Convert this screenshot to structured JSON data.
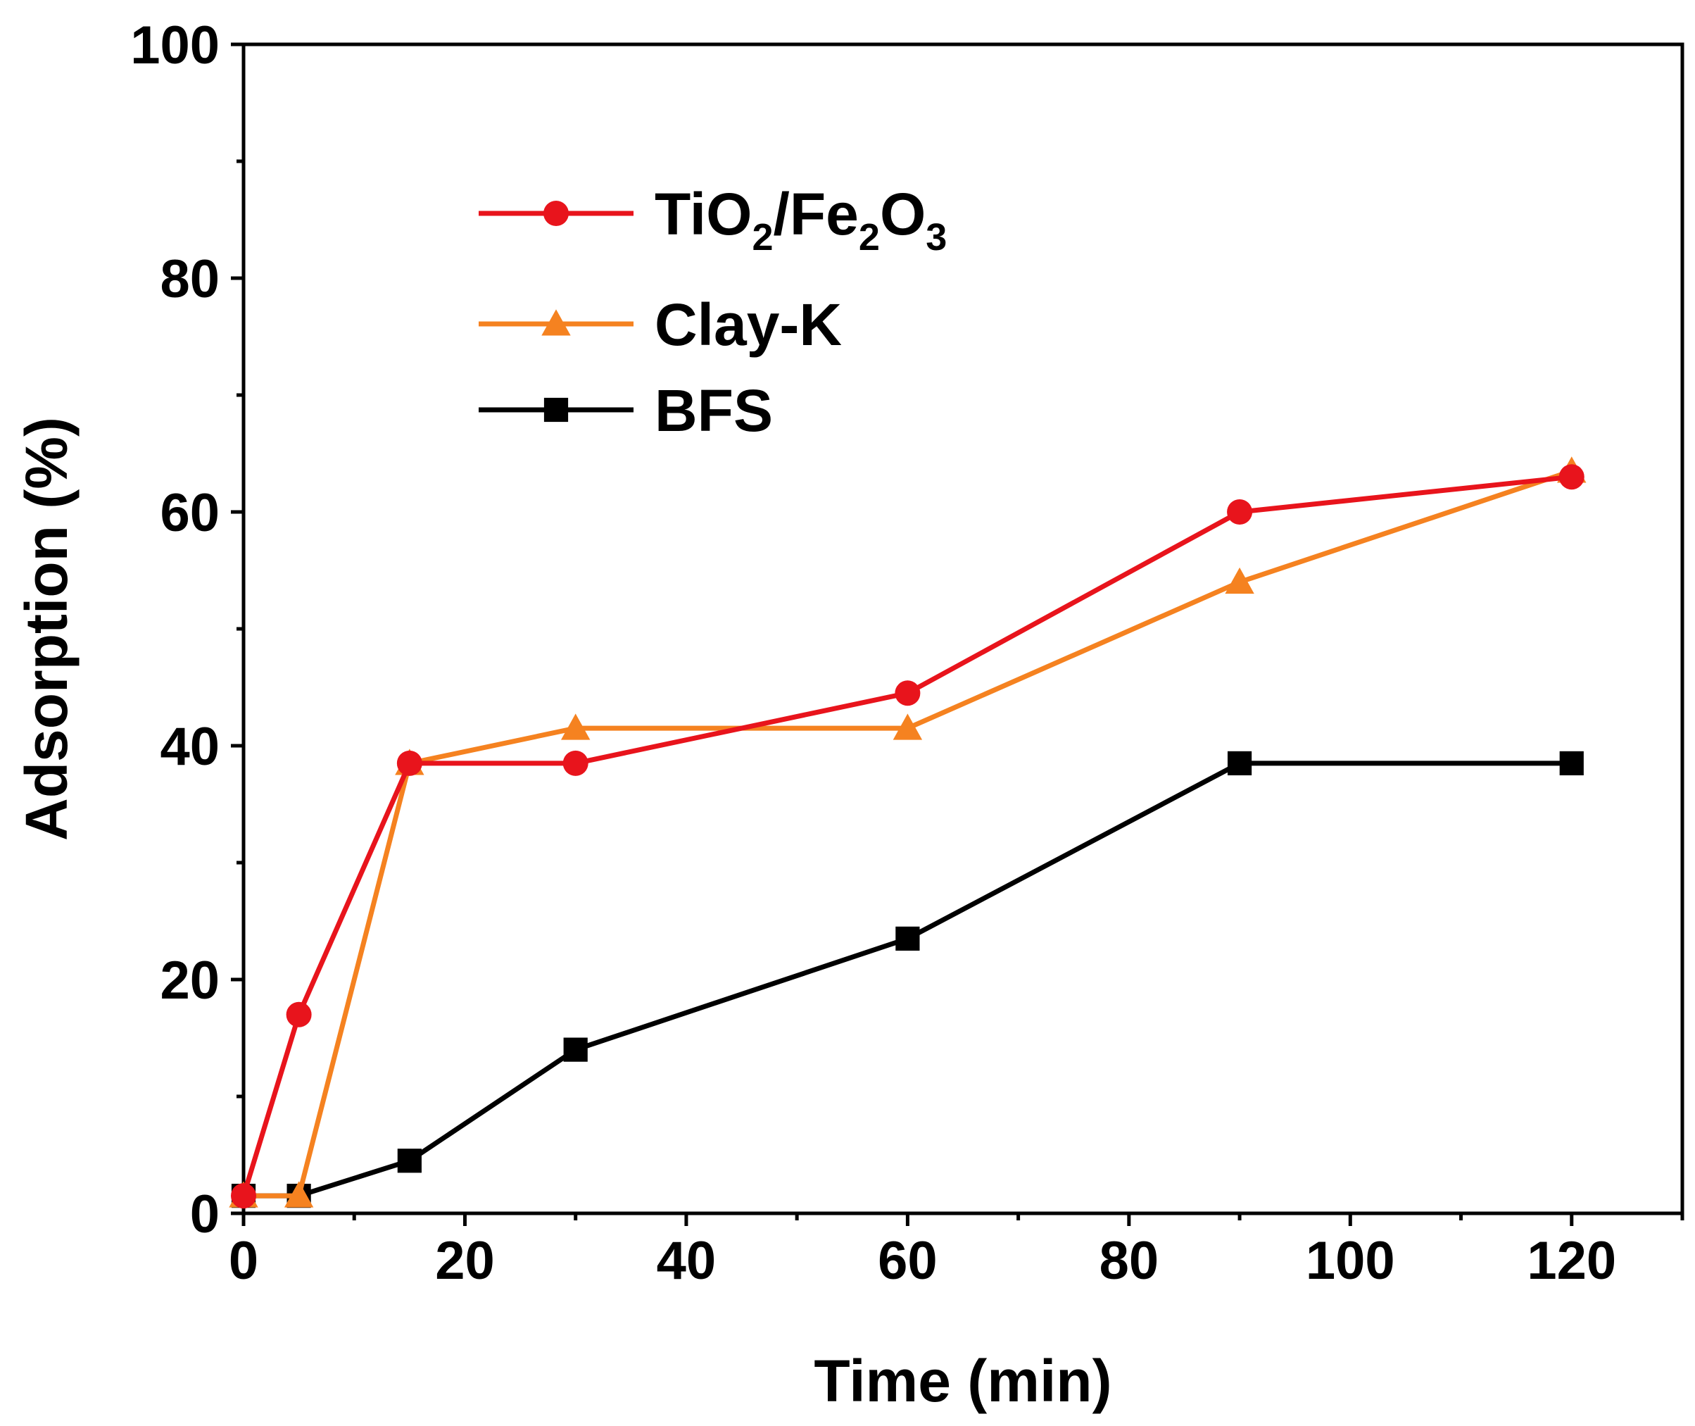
{
  "chart_data": {
    "type": "line",
    "title": "",
    "xlabel": "Time (min)",
    "ylabel": "Adsorption (%)",
    "xlim": [
      0,
      130
    ],
    "ylim": [
      0,
      100
    ],
    "xticks": [
      0,
      20,
      40,
      60,
      80,
      100,
      120
    ],
    "yticks": [
      0,
      20,
      40,
      60,
      80,
      100
    ],
    "grid": false,
    "legend_position": "top-left",
    "series": [
      {
        "name": "TiO2/Fe2O3",
        "legend_parts": [
          "TiO",
          "2",
          "/Fe",
          "2",
          "O",
          "3"
        ],
        "color": "#e8141c",
        "marker": "circle",
        "x": [
          0,
          5,
          15,
          30,
          60,
          90,
          120
        ],
        "values": [
          1.5,
          17,
          38.5,
          38.5,
          44.5,
          60,
          63
        ]
      },
      {
        "name": "Clay-K",
        "legend_parts": [
          "Clay-K"
        ],
        "color": "#f58220",
        "marker": "triangle",
        "x": [
          0,
          5,
          15,
          30,
          60,
          90,
          120
        ],
        "values": [
          1.5,
          1.5,
          38.5,
          41.5,
          41.5,
          54,
          63.5
        ]
      },
      {
        "name": "BFS",
        "legend_parts": [
          "BFS"
        ],
        "color": "#000000",
        "marker": "square",
        "x": [
          0,
          5,
          15,
          30,
          60,
          90,
          120
        ],
        "values": [
          1.5,
          1.5,
          4.5,
          14,
          23.5,
          38.5,
          38.5
        ]
      }
    ]
  }
}
